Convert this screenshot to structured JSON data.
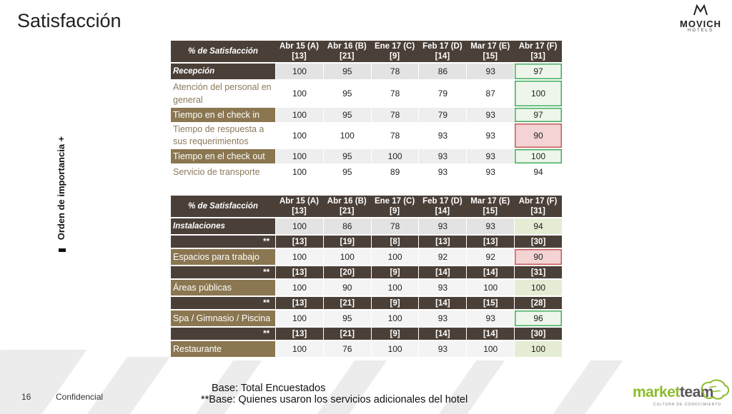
{
  "page": {
    "title": "Satisfacción",
    "logo_name": "MOVICH",
    "logo_sub": "HOTELS",
    "side_label": "Orden de importancia +",
    "page_number": "16",
    "confidential": "Confidencial",
    "base_note_1": "Base: Total Encuestados",
    "base_note_2": "**Base: Quienes usaron los servicios adicionales del hotel",
    "brand_part1": "market",
    "brand_part2": "team",
    "brand_sub": "CULTURA DE CONOCIMIENTO"
  },
  "table1": {
    "header": [
      "% de Satisfacción",
      "Abr 15 (A)[13]",
      "Abr 16 (B)[21]",
      "Ene 17 (C)[9]",
      "Feb 17 (D)[14]",
      "Mar 17 (E)[15]",
      "Abr 17 (F)[31]"
    ],
    "rows": [
      {
        "label": "Recepción",
        "values": [
          "100",
          "95",
          "78",
          "86",
          "93",
          "97"
        ]
      },
      {
        "label": "Atención del personal en general",
        "values": [
          "100",
          "95",
          "78",
          "79",
          "87",
          "100"
        ]
      },
      {
        "label": "Tiempo en el check in",
        "values": [
          "100",
          "95",
          "78",
          "79",
          "93",
          "97"
        ]
      },
      {
        "label": "Tiempo de respuesta a sus requerimientos",
        "values": [
          "100",
          "100",
          "78",
          "93",
          "93",
          "90"
        ]
      },
      {
        "label": "Tiempo en el check out",
        "values": [
          "100",
          "95",
          "100",
          "93",
          "93",
          "100"
        ]
      },
      {
        "label": "Servicio de transporte",
        "values": [
          "100",
          "95",
          "89",
          "93",
          "93",
          "94"
        ]
      }
    ]
  },
  "table2": {
    "header": [
      "% de Satisfacción",
      "Abr 15 (A)[13]",
      "Abr 16 (B)[21]",
      "Ene 17 (C)[9]",
      "Feb 17 (D)[14]",
      "Mar 17 (E)[15]",
      "Abr 17 (F)[31]"
    ],
    "rows": [
      {
        "label": "Instalaciones",
        "values": [
          "100",
          "86",
          "78",
          "93",
          "93",
          "94"
        ]
      },
      {
        "label": "**",
        "values": [
          "[13]",
          "[19]",
          "[8]",
          "[13]",
          "[13]",
          "[30]"
        ]
      },
      {
        "label": "Espacios para trabajo",
        "values": [
          "100",
          "100",
          "100",
          "92",
          "92",
          "90"
        ]
      },
      {
        "label": "**",
        "values": [
          "[13]",
          "[20]",
          "[9]",
          "[14]",
          "[14]",
          "[31]"
        ]
      },
      {
        "label": "Áreas públicas",
        "values": [
          "100",
          "90",
          "100",
          "93",
          "100",
          "100"
        ]
      },
      {
        "label": "**",
        "values": [
          "[13]",
          "[21]",
          "[9]",
          "[14]",
          "[15]",
          "[28]"
        ]
      },
      {
        "label": "Spa / Gimnasio / Piscina",
        "values": [
          "100",
          "95",
          "100",
          "93",
          "93",
          "96"
        ]
      },
      {
        "label": "**",
        "values": [
          "[13]",
          "[21]",
          "[9]",
          "[14]",
          "[14]",
          "[30]"
        ]
      },
      {
        "label": "Restaurante",
        "values": [
          "100",
          "76",
          "100",
          "93",
          "100",
          "100"
        ]
      }
    ]
  },
  "colors": {
    "header_bg": "#4b4038",
    "label_bg": "#8a7650",
    "highlight_green": "#3fae5d",
    "highlight_red": "#c85a5a"
  }
}
